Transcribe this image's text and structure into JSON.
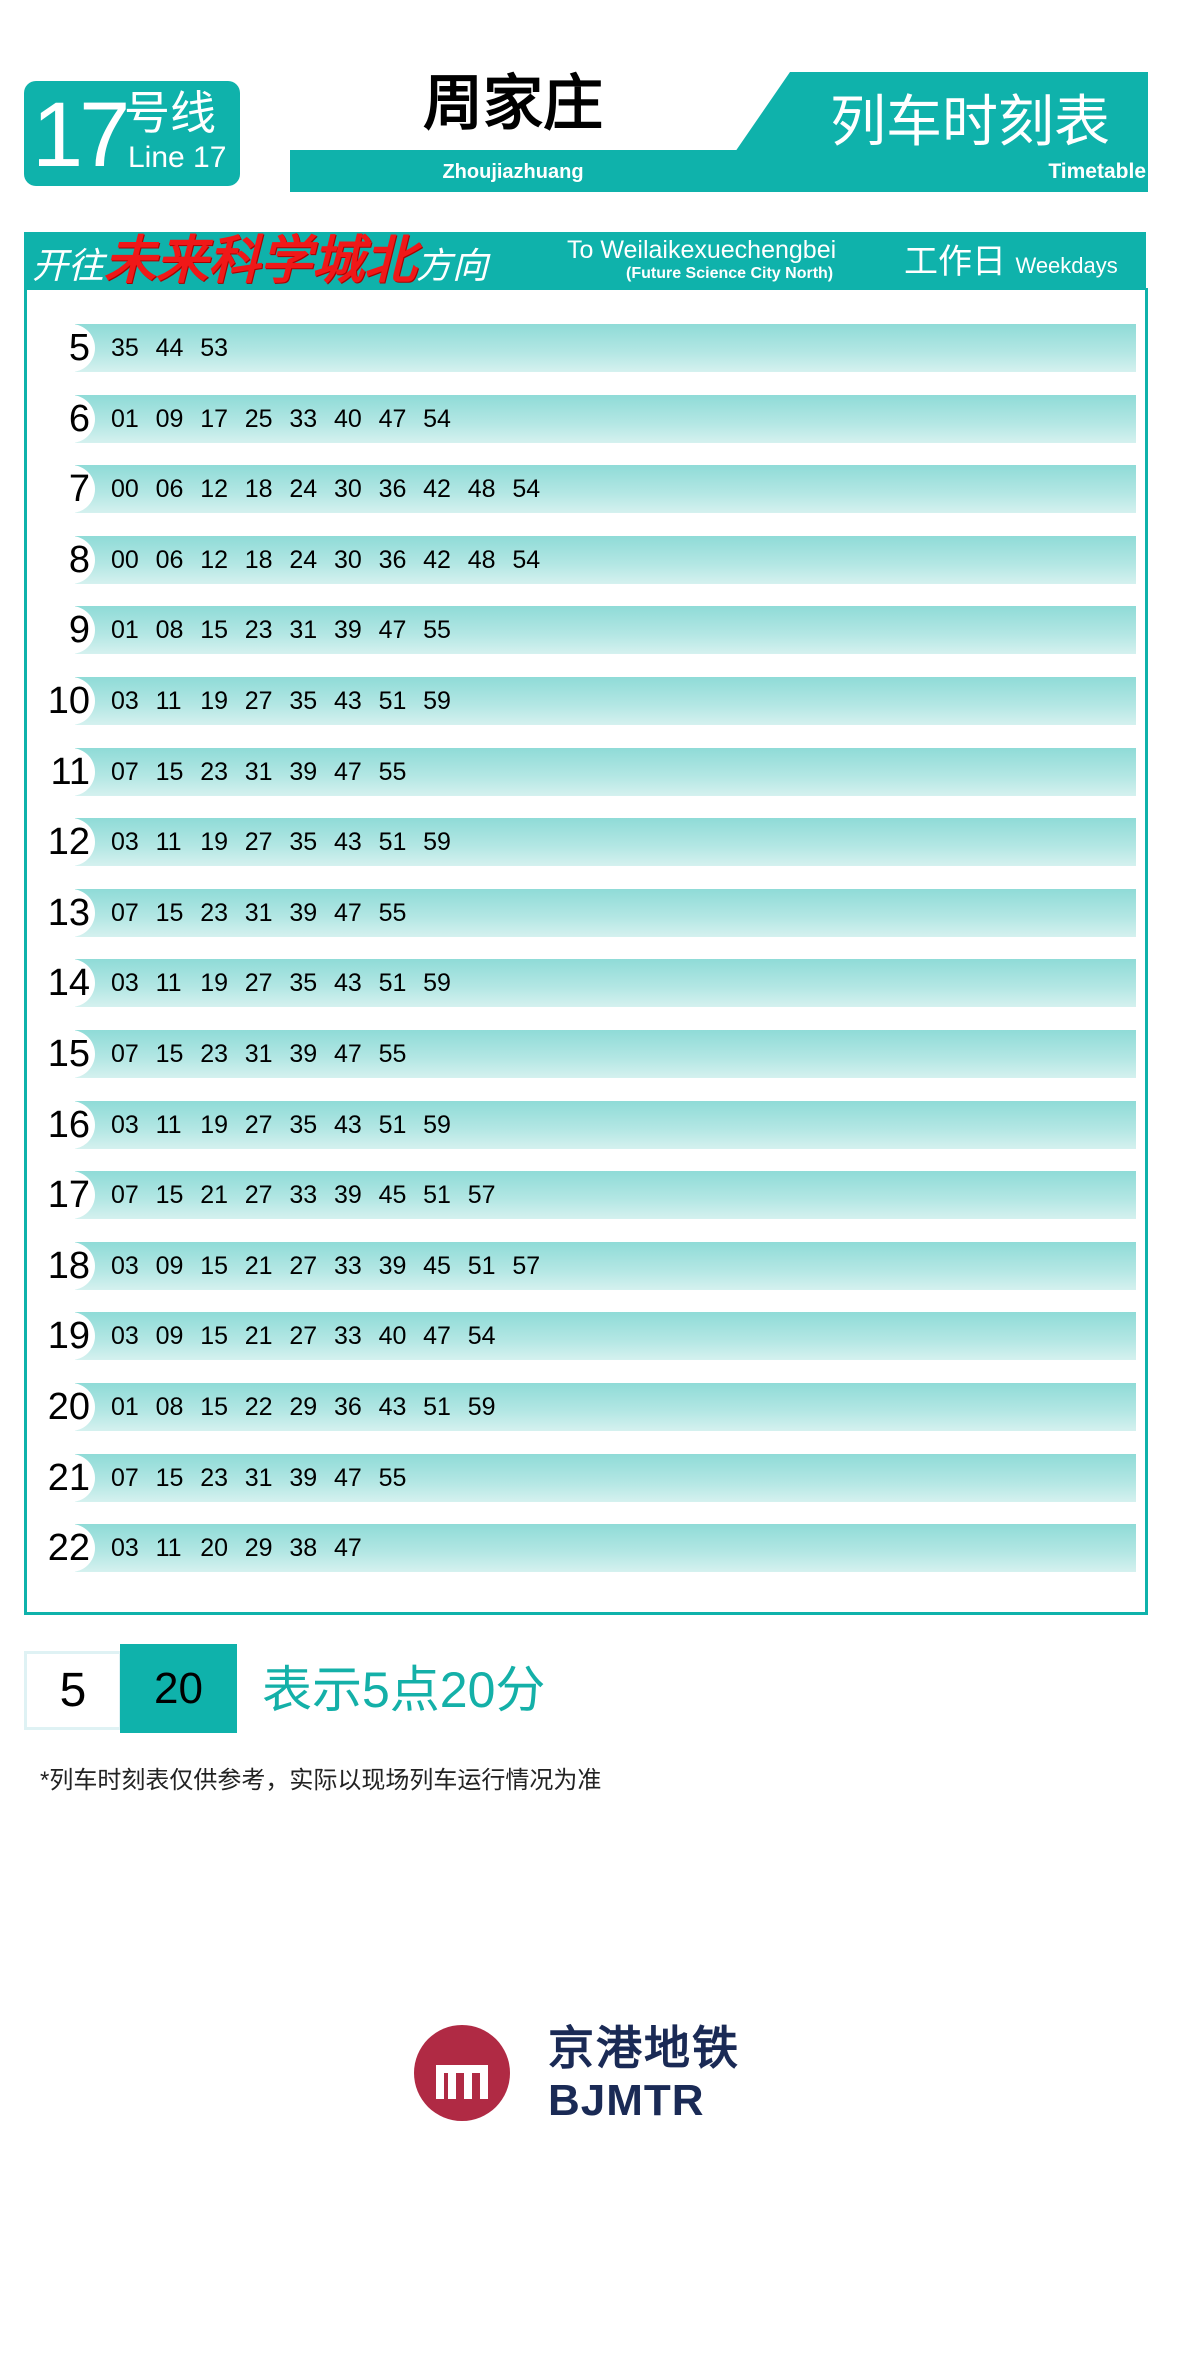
{
  "header": {
    "line_number": "17",
    "line_cn": "号线",
    "line_en": "Line 17",
    "station_cn": "周家庄",
    "station_en": "Zhoujiazhuang",
    "timetable_cn": "列车时刻表",
    "timetable_en": "Timetable"
  },
  "direction": {
    "prefix": "开往",
    "destination_cn": "未来科学城北",
    "suffix": "方向",
    "destination_en": "To Weilaikexuechengbei",
    "destination_en_sub": "(Future Science City North)",
    "day_cn": "工作日",
    "day_en": "Weekdays"
  },
  "schedule": [
    {
      "hour": "5",
      "minutes": [
        "35",
        "44",
        "53"
      ]
    },
    {
      "hour": "6",
      "minutes": [
        "01",
        "09",
        "17",
        "25",
        "33",
        "40",
        "47",
        "54"
      ]
    },
    {
      "hour": "7",
      "minutes": [
        "00",
        "06",
        "12",
        "18",
        "24",
        "30",
        "36",
        "42",
        "48",
        "54"
      ]
    },
    {
      "hour": "8",
      "minutes": [
        "00",
        "06",
        "12",
        "18",
        "24",
        "30",
        "36",
        "42",
        "48",
        "54"
      ]
    },
    {
      "hour": "9",
      "minutes": [
        "01",
        "08",
        "15",
        "23",
        "31",
        "39",
        "47",
        "55"
      ]
    },
    {
      "hour": "10",
      "minutes": [
        "03",
        "11",
        "19",
        "27",
        "35",
        "43",
        "51",
        "59"
      ]
    },
    {
      "hour": "11",
      "minutes": [
        "07",
        "15",
        "23",
        "31",
        "39",
        "47",
        "55"
      ]
    },
    {
      "hour": "12",
      "minutes": [
        "03",
        "11",
        "19",
        "27",
        "35",
        "43",
        "51",
        "59"
      ]
    },
    {
      "hour": "13",
      "minutes": [
        "07",
        "15",
        "23",
        "31",
        "39",
        "47",
        "55"
      ]
    },
    {
      "hour": "14",
      "minutes": [
        "03",
        "11",
        "19",
        "27",
        "35",
        "43",
        "51",
        "59"
      ]
    },
    {
      "hour": "15",
      "minutes": [
        "07",
        "15",
        "23",
        "31",
        "39",
        "47",
        "55"
      ]
    },
    {
      "hour": "16",
      "minutes": [
        "03",
        "11",
        "19",
        "27",
        "35",
        "43",
        "51",
        "59"
      ]
    },
    {
      "hour": "17",
      "minutes": [
        "07",
        "15",
        "21",
        "27",
        "33",
        "39",
        "45",
        "51",
        "57"
      ]
    },
    {
      "hour": "18",
      "minutes": [
        "03",
        "09",
        "15",
        "21",
        "27",
        "33",
        "39",
        "45",
        "51",
        "57"
      ]
    },
    {
      "hour": "19",
      "minutes": [
        "03",
        "09",
        "15",
        "21",
        "27",
        "33",
        "40",
        "47",
        "54"
      ]
    },
    {
      "hour": "20",
      "minutes": [
        "01",
        "08",
        "15",
        "22",
        "29",
        "36",
        "43",
        "51",
        "59"
      ]
    },
    {
      "hour": "21",
      "minutes": [
        "07",
        "15",
        "23",
        "31",
        "39",
        "47",
        "55"
      ]
    },
    {
      "hour": "22",
      "minutes": [
        "03",
        "11",
        "20",
        "29",
        "38",
        "47"
      ]
    }
  ],
  "legend": {
    "hour_example": "5",
    "minute_example": "20",
    "explanation": "表示5点20分"
  },
  "note": "*列车时刻表仅供参考，实际以现场列车运行情况为准",
  "logo": {
    "cn": "京港地铁",
    "en": "BJMTR"
  },
  "colors": {
    "accent": "#0fb2ab",
    "destination": "#f01818",
    "logo_red": "#b02a44",
    "logo_navy": "#1a2a55"
  }
}
